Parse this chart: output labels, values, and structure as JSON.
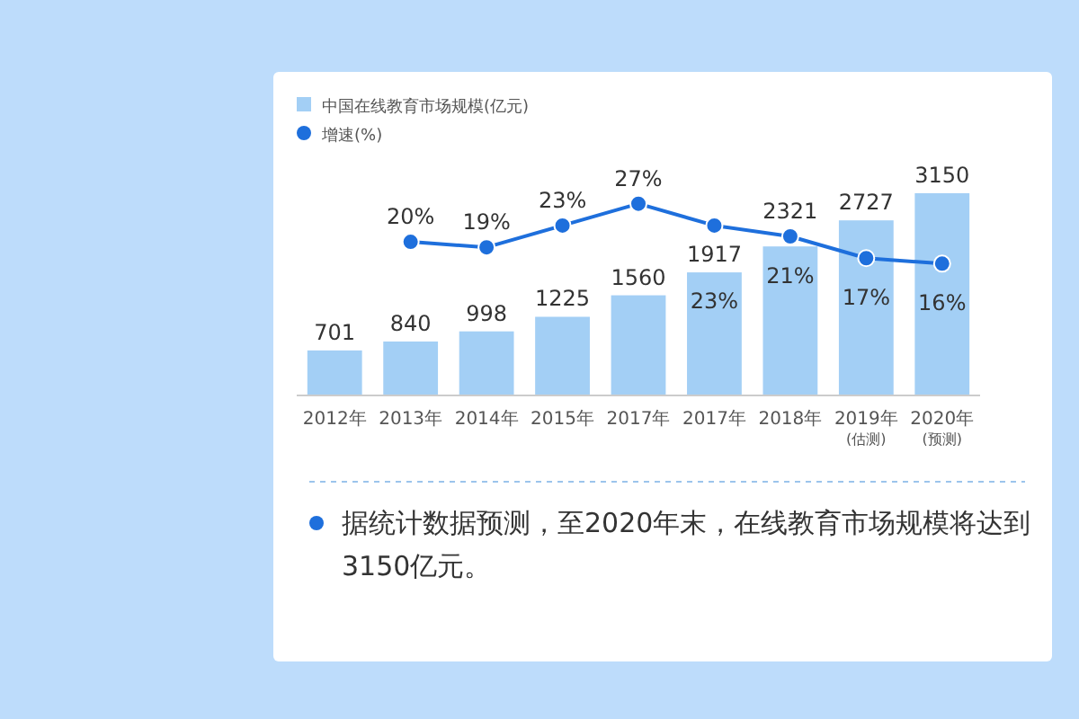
{
  "chart_data": {
    "type": "bar",
    "categories": [
      "2012年",
      "2013年",
      "2014年",
      "2015年",
      "2017年",
      "2017年",
      "2018年",
      "2019年 (估测)",
      "2020年 (预测)"
    ],
    "legend": "top left",
    "data_labels": true,
    "marker": "circle",
    "series": [
      {
        "name": "中国在线教育市场规模(亿元)",
        "color": "#a3cff5",
        "values": [
          701,
          840,
          998,
          1225,
          1560,
          1917,
          2321,
          2727,
          3150
        ]
      },
      {
        "name": "增速(%)",
        "type": "line",
        "axis": "y2",
        "color": "#1e6fdc",
        "values": [
          null,
          20,
          19,
          23,
          27,
          23,
          21,
          17,
          16
        ],
        "value_labels": [
          null,
          "20%",
          "19%",
          "23%",
          "27%",
          "23%",
          "21%",
          "17%",
          "16%"
        ]
      }
    ],
    "annotations": [
      "据统计数据预测，至2020年末，在线教育市场规模将达到3150亿元。"
    ]
  }
}
